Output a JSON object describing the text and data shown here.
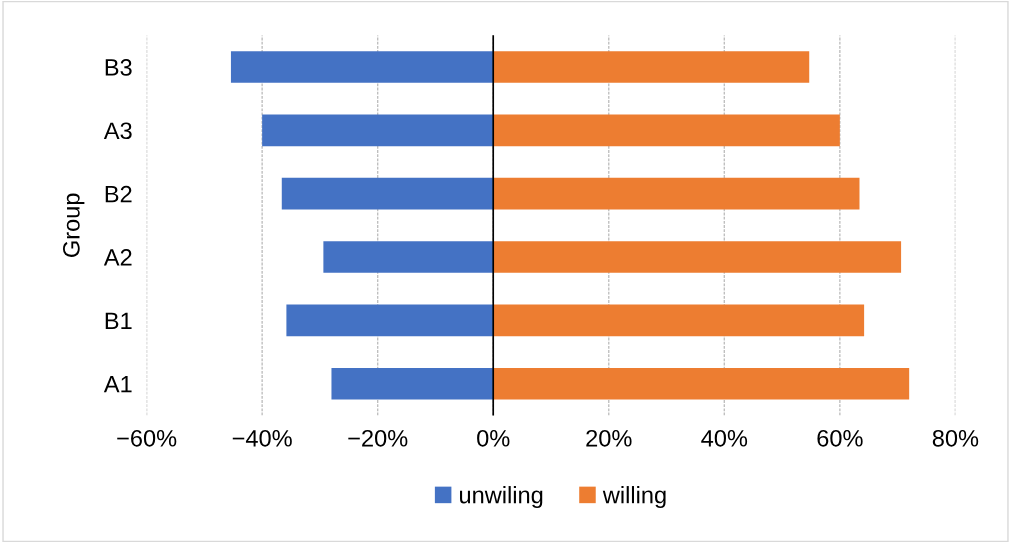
{
  "chart_data": {
    "type": "bar",
    "orientation": "horizontal",
    "stacked": true,
    "ylabel": "Group",
    "categories": [
      "B3",
      "A3",
      "B2",
      "A2",
      "B1",
      "A1"
    ],
    "series": [
      {
        "name": "unwiling",
        "color": "#4472c4",
        "values": [
          -45.4,
          -40,
          -36.6,
          -29.4,
          -35.8,
          -28
        ]
      },
      {
        "name": "willing",
        "color": "#ed7d31",
        "values": [
          54.7,
          60,
          63.4,
          70.6,
          64.2,
          72
        ]
      }
    ],
    "xlim": [
      -60,
      80
    ],
    "xticks": [
      {
        "value": -60,
        "label": "−60%"
      },
      {
        "value": -40,
        "label": "−40%"
      },
      {
        "value": -20,
        "label": "−20%"
      },
      {
        "value": 0,
        "label": "0%"
      },
      {
        "value": 20,
        "label": "20%"
      },
      {
        "value": 40,
        "label": "40%"
      },
      {
        "value": 60,
        "label": "60%"
      },
      {
        "value": 80,
        "label": "80%"
      }
    ],
    "ref_lines": [
      {
        "axis": "x",
        "value": 0,
        "color": "#000000"
      }
    ],
    "grid": "x",
    "legend": "bottom"
  }
}
